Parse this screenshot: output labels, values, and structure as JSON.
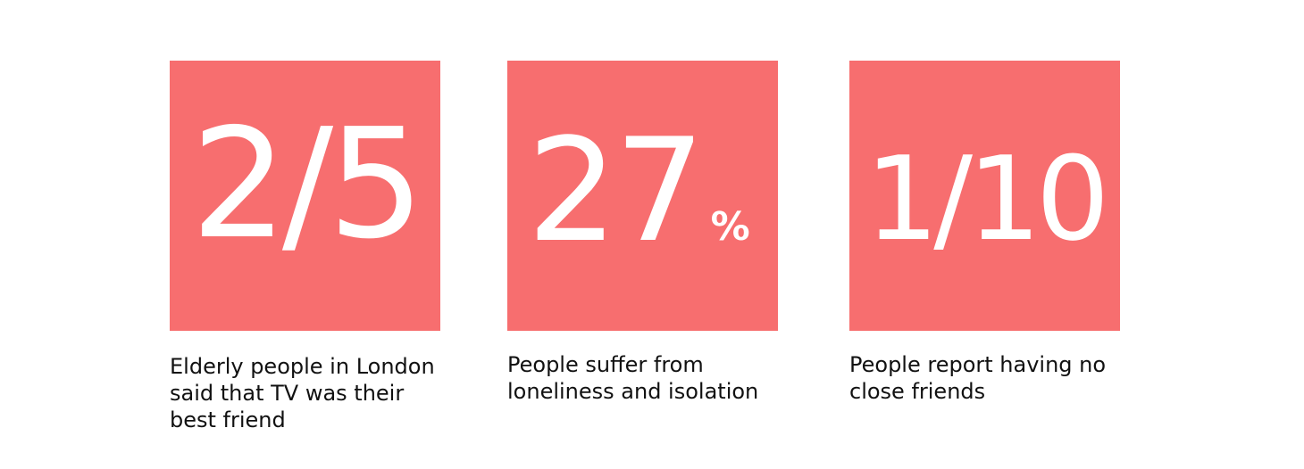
{
  "theme": {
    "tile_color": "#f76e6f",
    "stat_color": "#ffffff",
    "caption_color": "#111111"
  },
  "stats": [
    {
      "value": "2/5",
      "unit": "",
      "caption_lines": [
        "Elderly people in London",
        "said that TV was their",
        "best friend"
      ]
    },
    {
      "value": "27",
      "unit": "%",
      "caption_lines": [
        "People suffer from",
        "loneliness and isolation"
      ]
    },
    {
      "value": "1/10",
      "unit": "",
      "caption_lines": [
        "People report having no",
        "close friends"
      ]
    }
  ]
}
